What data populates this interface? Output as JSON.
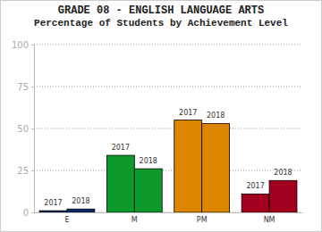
{
  "chart_data": {
    "type": "bar",
    "title": "GRADE 08 - ENGLISH LANGUAGE ARTS",
    "subtitle": "Percentage of Students by Achievement Level",
    "categories": [
      "E",
      "M",
      "PM",
      "NM"
    ],
    "series": [
      {
        "name": "2017",
        "values": [
          1,
          34,
          55,
          11
        ]
      },
      {
        "name": "2018",
        "values": [
          2,
          26,
          53,
          19
        ]
      }
    ],
    "colors": [
      "#0b2a6b",
      "#0d9a2b",
      "#de8500",
      "#a3001f"
    ],
    "ylim": [
      0,
      100
    ],
    "yticks": [
      0,
      25,
      50,
      75,
      100
    ],
    "grid": true
  }
}
